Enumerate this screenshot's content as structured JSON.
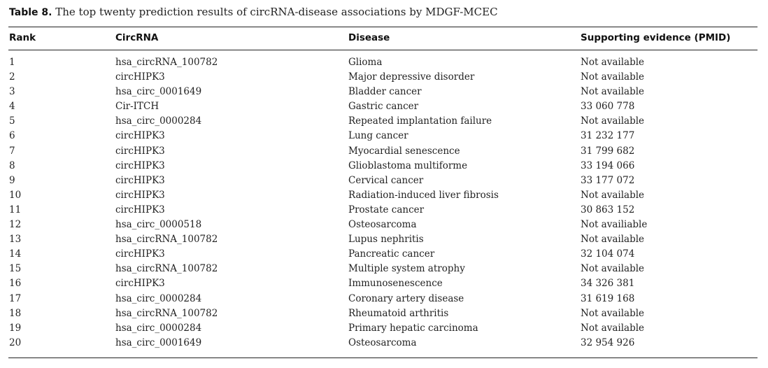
{
  "caption": {
    "label": "Table 8.",
    "text": "The top twenty prediction results of circRNA-disease associations by MDGF-MCEC"
  },
  "headers": {
    "rank": "Rank",
    "circrna": "CircRNA",
    "disease": "Disease",
    "evidence": "Supporting evidence (PMID)"
  },
  "rows": [
    {
      "rank": "1",
      "circrna": "hsa_circRNA_100782",
      "disease": "Glioma",
      "evidence": "Not available"
    },
    {
      "rank": "2",
      "circrna": "circHIPK3",
      "disease": "Major depressive disorder",
      "evidence": "Not available"
    },
    {
      "rank": "3",
      "circrna": "hsa_circ_0001649",
      "disease": "Bladder cancer",
      "evidence": "Not available"
    },
    {
      "rank": "4",
      "circrna": "Cir-ITCH",
      "disease": "Gastric cancer",
      "evidence": "33 060 778"
    },
    {
      "rank": "5",
      "circrna": "hsa_circ_0000284",
      "disease": "Repeated implantation failure",
      "evidence": "Not available"
    },
    {
      "rank": "6",
      "circrna": "circHIPK3",
      "disease": "Lung cancer",
      "evidence": "31 232 177"
    },
    {
      "rank": "7",
      "circrna": "circHIPK3",
      "disease": "Myocardial senescence",
      "evidence": "31 799 682"
    },
    {
      "rank": "8",
      "circrna": "circHIPK3",
      "disease": "Glioblastoma multiforme",
      "evidence": "33 194 066"
    },
    {
      "rank": "9",
      "circrna": "circHIPK3",
      "disease": "Cervical cancer",
      "evidence": "33 177 072"
    },
    {
      "rank": "10",
      "circrna": "circHIPK3",
      "disease": "Radiation-induced liver fibrosis",
      "evidence": "Not available"
    },
    {
      "rank": "11",
      "circrna": "circHIPK3",
      "disease": "Prostate cancer",
      "evidence": "30 863 152"
    },
    {
      "rank": "12",
      "circrna": "hsa_circ_0000518",
      "disease": "Osteosarcoma",
      "evidence": "Not availiable"
    },
    {
      "rank": "13",
      "circrna": "hsa_circRNA_100782",
      "disease": "Lupus nephritis",
      "evidence": "Not available"
    },
    {
      "rank": "14",
      "circrna": "circHIPK3",
      "disease": "Pancreatic cancer",
      "evidence": "32 104 074"
    },
    {
      "rank": "15",
      "circrna": "hsa_circRNA_100782",
      "disease": "Multiple system atrophy",
      "evidence": "Not available"
    },
    {
      "rank": "16",
      "circrna": "circHIPK3",
      "disease": "Immunosenescence",
      "evidence": "34 326 381"
    },
    {
      "rank": "17",
      "circrna": "hsa_circ_0000284",
      "disease": "Coronary artery disease",
      "evidence": "31 619 168"
    },
    {
      "rank": "18",
      "circrna": "hsa_circRNA_100782",
      "disease": "Rheumatoid arthritis",
      "evidence": "Not available"
    },
    {
      "rank": "19",
      "circrna": "hsa_circ_0000284",
      "disease": "Primary hepatic carcinoma",
      "evidence": "Not available"
    },
    {
      "rank": "20",
      "circrna": "hsa_circ_0001649",
      "disease": "Osteosarcoma",
      "evidence": "32 954 926"
    }
  ]
}
